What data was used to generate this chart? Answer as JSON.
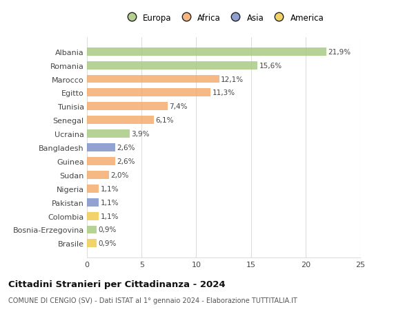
{
  "countries": [
    "Albania",
    "Romania",
    "Marocco",
    "Egitto",
    "Tunisia",
    "Senegal",
    "Ucraina",
    "Bangladesh",
    "Guinea",
    "Sudan",
    "Nigeria",
    "Pakistan",
    "Colombia",
    "Bosnia-Erzegovina",
    "Brasile"
  ],
  "values": [
    21.9,
    15.6,
    12.1,
    11.3,
    7.4,
    6.1,
    3.9,
    2.6,
    2.6,
    2.0,
    1.1,
    1.1,
    1.1,
    0.9,
    0.9
  ],
  "labels": [
    "21,9%",
    "15,6%",
    "12,1%",
    "11,3%",
    "7,4%",
    "6,1%",
    "3,9%",
    "2,6%",
    "2,6%",
    "2,0%",
    "1,1%",
    "1,1%",
    "1,1%",
    "0,9%",
    "0,9%"
  ],
  "colors": [
    "#a8c97f",
    "#a8c97f",
    "#f4a96a",
    "#f4a96a",
    "#f4a96a",
    "#f4a96a",
    "#a8c97f",
    "#7b8fc7",
    "#f4a96a",
    "#f4a96a",
    "#f4a96a",
    "#7b8fc7",
    "#f0c94a",
    "#a8c97f",
    "#f0c94a"
  ],
  "legend_labels": [
    "Europa",
    "Africa",
    "Asia",
    "America"
  ],
  "legend_colors": [
    "#a8c97f",
    "#f4a96a",
    "#7b8fc7",
    "#f0c94a"
  ],
  "title": "Cittadini Stranieri per Cittadinanza - 2024",
  "subtitle": "COMUNE DI CENGIO (SV) - Dati ISTAT al 1° gennaio 2024 - Elaborazione TUTTITALIA.IT",
  "xlim": [
    0,
    25
  ],
  "xticks": [
    0,
    5,
    10,
    15,
    20,
    25
  ],
  "background_color": "#ffffff",
  "bar_height": 0.6,
  "grid_color": "#dddddd",
  "label_fontsize": 7.5,
  "ytick_fontsize": 8.0,
  "xtick_fontsize": 8.0,
  "legend_fontsize": 8.5,
  "title_fontsize": 9.5,
  "subtitle_fontsize": 7.0
}
